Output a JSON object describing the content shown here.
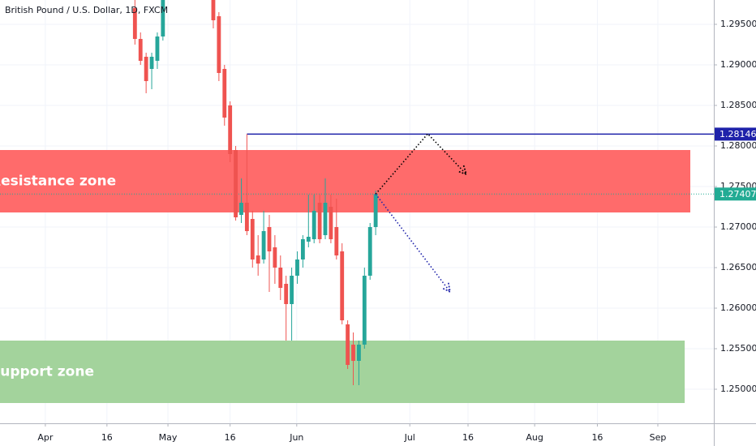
{
  "chart_data": {
    "type": "candlestick",
    "title": "British Pound / U.S. Dollar, 1D, FXCM",
    "x": [
      16,
      17,
      18,
      19,
      20,
      21,
      30,
      31,
      32,
      33,
      34,
      35,
      36,
      37,
      38,
      39,
      40,
      41,
      42,
      43,
      44,
      45,
      46,
      47,
      48,
      49,
      50,
      51,
      52,
      53,
      54,
      55,
      56,
      57,
      58,
      59
    ],
    "open": [
      1.297,
      1.2932,
      1.291,
      1.2895,
      1.2905,
      1.2935,
      1.2985,
      1.296,
      1.2895,
      1.285,
      1.2795,
      1.2715,
      1.273,
      1.271,
      1.2665,
      1.266,
      1.27,
      1.2675,
      1.265,
      1.263,
      1.2605,
      1.264,
      1.266,
      1.2682,
      1.2685,
      1.273,
      1.269,
      1.2725,
      1.27,
      1.267,
      1.258,
      1.2555,
      1.2535,
      1.2555,
      1.264,
      1.27
    ],
    "high": [
      1.2985,
      1.294,
      1.2915,
      1.2915,
      1.294,
      1.299,
      1.299,
      1.2965,
      1.29,
      1.2855,
      1.28,
      1.276,
      1.28146,
      1.272,
      1.269,
      1.272,
      1.2715,
      1.269,
      1.2665,
      1.264,
      1.265,
      1.267,
      1.269,
      1.274,
      1.274,
      1.274,
      1.276,
      1.274,
      1.2735,
      1.268,
      1.2585,
      1.257,
      1.256,
      1.265,
      1.2705,
      1.2745
    ],
    "low": [
      1.2925,
      1.29,
      1.2865,
      1.287,
      1.2895,
      1.293,
      1.2945,
      1.288,
      1.2825,
      1.278,
      1.2708,
      1.2705,
      1.269,
      1.265,
      1.264,
      1.2655,
      1.262,
      1.263,
      1.261,
      1.256,
      1.256,
      1.263,
      1.265,
      1.2675,
      1.268,
      1.268,
      1.2685,
      1.268,
      1.266,
      1.258,
      1.2525,
      1.2505,
      1.2505,
      1.255,
      1.2635,
      1.269
    ],
    "close": [
      1.2932,
      1.2905,
      1.288,
      1.291,
      1.2935,
      1.2985,
      1.2955,
      1.289,
      1.2835,
      1.279,
      1.2712,
      1.273,
      1.2695,
      1.266,
      1.2655,
      1.2695,
      1.267,
      1.265,
      1.2625,
      1.2605,
      1.264,
      1.266,
      1.2685,
      1.2688,
      1.272,
      1.2685,
      1.273,
      1.2685,
      1.2665,
      1.2585,
      1.253,
      1.2535,
      1.2555,
      1.264,
      1.27,
      1.27407
    ],
    "up_color": "#26a69a",
    "down_color": "#ef5350",
    "xlim": [
      -8.1,
      119.4
    ],
    "xticks": [
      {
        "value": 0,
        "label": "Apr"
      },
      {
        "value": 11,
        "label": "16"
      },
      {
        "value": 21.9,
        "label": "May"
      },
      {
        "value": 33,
        "label": "16"
      },
      {
        "value": 44.9,
        "label": "Jun"
      },
      {
        "value": 65.1,
        "label": "Jul"
      },
      {
        "value": 75.5,
        "label": "16"
      },
      {
        "value": 87.4,
        "label": "Aug"
      },
      {
        "value": 98.6,
        "label": "16"
      },
      {
        "value": 109.4,
        "label": "Sep"
      }
    ],
    "ylim": [
      1.2458,
      1.298
    ],
    "yticks": [
      {
        "value": 1.25,
        "label": "1.25000"
      },
      {
        "value": 1.255,
        "label": "1.25500"
      },
      {
        "value": 1.26,
        "label": "1.26000"
      },
      {
        "value": 1.265,
        "label": "1.26500"
      },
      {
        "value": 1.27,
        "label": "1.27000"
      },
      {
        "value": 1.275,
        "label": "1.27500"
      },
      {
        "value": 1.28,
        "label": "1.28000"
      },
      {
        "value": 1.285,
        "label": "1.28500"
      },
      {
        "value": 1.29,
        "label": "1.29000"
      },
      {
        "value": 1.295,
        "label": "1.29500"
      }
    ],
    "grid": true,
    "zones": [
      {
        "name": "Resistance zone",
        "low": 1.2718,
        "high": 1.2795,
        "x_end": 115.2,
        "color": "#ff6b6b"
      },
      {
        "name": "Support zone",
        "low": 1.2483,
        "high": 1.256,
        "x_end": 114.2,
        "color": "#a3d39c"
      }
    ],
    "level": {
      "value": 1.28146,
      "x_start": 36,
      "color": "#1e22aa"
    },
    "last_price": {
      "value": 1.27407,
      "color": "#22ab94"
    },
    "projections": [
      {
        "color": "#000000",
        "x": [
          59,
          68.3,
          75.2
        ],
        "y": [
          1.27407,
          1.2815,
          1.2765
        ]
      },
      {
        "color": "#1e22aa",
        "x": [
          59,
          72.3
        ],
        "y": [
          1.27407,
          1.262
        ]
      }
    ]
  }
}
